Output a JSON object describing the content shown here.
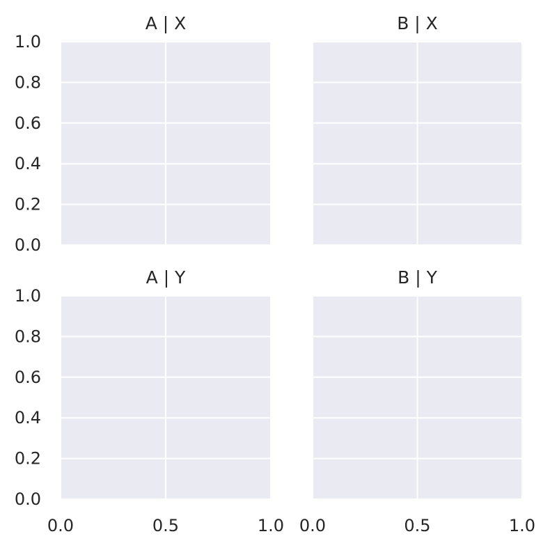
{
  "chart_data": [
    {
      "type": "scatter",
      "title": "A | X",
      "xlabel": "",
      "ylabel": "",
      "xlim": [
        0.0,
        1.0
      ],
      "ylim": [
        0.0,
        1.0
      ],
      "xticks": [
        0.0,
        0.5,
        1.0
      ],
      "xtick_labels": [
        "0.0",
        "0.5",
        "1.0"
      ],
      "yticks": [
        0.0,
        0.2,
        0.4,
        0.6,
        0.8,
        1.0
      ],
      "ytick_labels": [
        "0.0",
        "0.2",
        "0.4",
        "0.6",
        "0.8",
        "1.0"
      ],
      "show_xtick_labels": false,
      "show_ytick_labels": true,
      "grid": true,
      "series": []
    },
    {
      "type": "scatter",
      "title": "B | X",
      "xlabel": "",
      "ylabel": "",
      "xlim": [
        0.0,
        1.0
      ],
      "ylim": [
        0.0,
        1.0
      ],
      "xticks": [
        0.0,
        0.5,
        1.0
      ],
      "xtick_labels": [
        "0.0",
        "0.5",
        "1.0"
      ],
      "yticks": [
        0.0,
        0.2,
        0.4,
        0.6,
        0.8,
        1.0
      ],
      "ytick_labels": [
        "0.0",
        "0.2",
        "0.4",
        "0.6",
        "0.8",
        "1.0"
      ],
      "show_xtick_labels": false,
      "show_ytick_labels": false,
      "grid": true,
      "series": []
    },
    {
      "type": "scatter",
      "title": "A | Y",
      "xlabel": "",
      "ylabel": "",
      "xlim": [
        0.0,
        1.0
      ],
      "ylim": [
        0.0,
        1.0
      ],
      "xticks": [
        0.0,
        0.5,
        1.0
      ],
      "xtick_labels": [
        "0.0",
        "0.5",
        "1.0"
      ],
      "yticks": [
        0.0,
        0.2,
        0.4,
        0.6,
        0.8,
        1.0
      ],
      "ytick_labels": [
        "0.0",
        "0.2",
        "0.4",
        "0.6",
        "0.8",
        "1.0"
      ],
      "show_xtick_labels": true,
      "show_ytick_labels": true,
      "grid": true,
      "series": []
    },
    {
      "type": "scatter",
      "title": "B | Y",
      "xlabel": "",
      "ylabel": "",
      "xlim": [
        0.0,
        1.0
      ],
      "ylim": [
        0.0,
        1.0
      ],
      "xticks": [
        0.0,
        0.5,
        1.0
      ],
      "xtick_labels": [
        "0.0",
        "0.5",
        "1.0"
      ],
      "yticks": [
        0.0,
        0.2,
        0.4,
        0.6,
        0.8,
        1.0
      ],
      "ytick_labels": [
        "0.0",
        "0.2",
        "0.4",
        "0.6",
        "0.8",
        "1.0"
      ],
      "show_xtick_labels": true,
      "show_ytick_labels": false,
      "grid": true,
      "series": []
    }
  ],
  "colors": {
    "panel_background": "#eaeaf2",
    "grid": "#ffffff",
    "text": "#262626"
  }
}
